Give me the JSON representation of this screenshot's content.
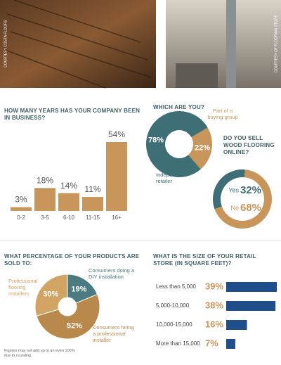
{
  "photos": [
    {
      "credit": "COURTESY COSTA FLOORS"
    },
    {
      "credit": "COURTESY OF FLOORING STORE"
    }
  ],
  "chart_data": [
    {
      "type": "bar",
      "title": "HOW MANY YEARS HAS YOUR COMPANY BEEN IN BUSINESS?",
      "categories": [
        "0-2",
        "3-5",
        "6-10",
        "11-15",
        "16+"
      ],
      "values": [
        3,
        18,
        14,
        11,
        54
      ],
      "value_labels": [
        "3%",
        "18%",
        "14%",
        "11%",
        "54%"
      ],
      "color": "#c8965a"
    },
    {
      "type": "donut",
      "title": "WHICH ARE YOU?",
      "categories": [
        "Part of a buying group",
        "Independent retailer"
      ],
      "values": [
        22,
        78
      ],
      "value_labels": [
        "22%",
        "78%"
      ],
      "colors": [
        "#c8965a",
        "#3f6f76"
      ]
    },
    {
      "type": "ring",
      "title": "DO YOU SELL WOOD FLOORING ONLINE?",
      "categories": [
        "Yes",
        "No"
      ],
      "values": [
        32,
        68
      ],
      "value_labels": [
        "32%",
        "68%"
      ],
      "colors": [
        "#3f6f76",
        "#c8965a"
      ]
    },
    {
      "type": "pie",
      "title": "WHAT PERCENTAGE OF YOUR PRODUCTS ARE SOLD TO:",
      "categories": [
        "Consumers doing a DIY installation",
        "Consumers hiring a professional installer",
        "Professional flooring installers"
      ],
      "values": [
        19,
        52,
        30
      ],
      "value_labels": [
        "19%",
        "52%",
        "30%"
      ],
      "colors": [
        "#4b7a80",
        "#b8894a",
        "#d2a463"
      ],
      "note": "Figures may not add up to an even 100% due to rounding."
    },
    {
      "type": "hbar",
      "title": "WHAT IS THE SIZE OF YOUR RETAIL STORE (IN SQUARE FEET)?",
      "categories": [
        "Less than 5,000",
        "5,000-10,000",
        "10,000-15,000",
        "More than 15,000"
      ],
      "values": [
        39,
        38,
        16,
        7
      ],
      "value_labels": [
        "39%",
        "38%",
        "16%",
        "7%"
      ],
      "color": "#1f4f8a"
    }
  ]
}
